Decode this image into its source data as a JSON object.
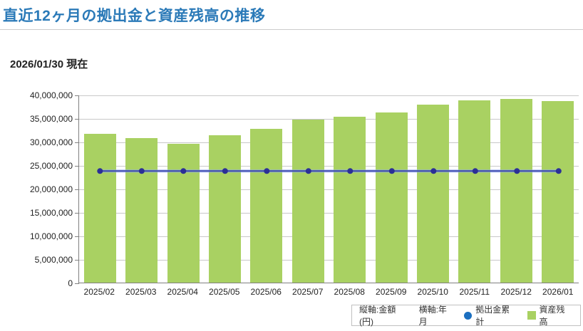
{
  "header": {
    "title": "直近12ヶ月の拠出金と資産残高の推移",
    "as_of": "2026/01/30 現在"
  },
  "chart_data": {
    "type": "bar",
    "title": "直近12ヶ月の拠出金と資産残高の推移",
    "xlabel": "年月",
    "ylabel": "金額(円)",
    "categories": [
      "2025/02",
      "2025/03",
      "2025/04",
      "2025/05",
      "2025/06",
      "2025/07",
      "2025/08",
      "2025/09",
      "2025/10",
      "2025/11",
      "2025/12",
      "2026/01"
    ],
    "series": [
      {
        "name": "資産残高",
        "type": "bar",
        "values": [
          31600000,
          30800000,
          29500000,
          31400000,
          32800000,
          34700000,
          35300000,
          36200000,
          37900000,
          38800000,
          39100000,
          38700000
        ]
      },
      {
        "name": "拠出金累計",
        "type": "line",
        "values": [
          23900000,
          23900000,
          23900000,
          23900000,
          23900000,
          23900000,
          23900000,
          23900000,
          23900000,
          23900000,
          23900000,
          23900000
        ]
      }
    ],
    "ylim": [
      0,
      40000000
    ],
    "y_tick_step": 5000000,
    "y_ticks": [
      "0",
      "5,000,000",
      "10,000,000",
      "15,000,000",
      "20,000,000",
      "25,000,000",
      "30,000,000",
      "35,000,000",
      "40,000,000"
    ],
    "grid": true,
    "legend_position": "bottom-right"
  },
  "legend": {
    "y_axis_note": "縦軸:金額(円)",
    "x_axis_note": "横軸:年月",
    "line_label": "拠出金累計",
    "bar_label": "資産残高"
  },
  "colors": {
    "title_color": "#2b7ab8",
    "bar_color": "#a9d162",
    "line_color": "#3a47ae",
    "line_glow_color": "#8fa8ef",
    "dot_color": "#2b2f96",
    "legend_dot_color": "#1b6fc0",
    "grid_color": "#c8c8c8",
    "axis_color": "#808080"
  }
}
